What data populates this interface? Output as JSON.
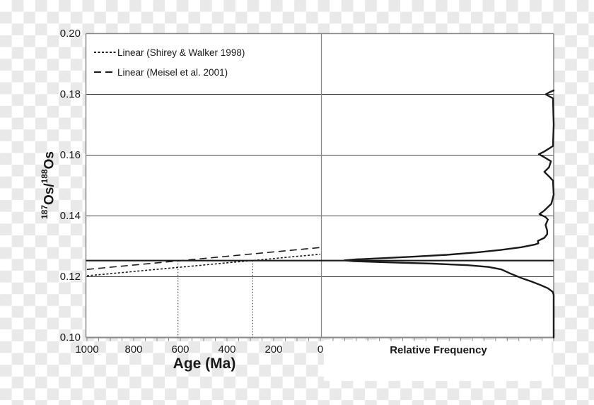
{
  "colors": {
    "curve": "#1a1a1a",
    "grid": "#3f3f3f",
    "border": "#878787",
    "checker": "#e9e9e9",
    "plot_background": "#ffffff"
  },
  "legend": {
    "items": [
      {
        "label": "Linear (Shirey & Walker 1998)",
        "style": "short-dash"
      },
      {
        "label": "Linear (Meisel et al. 2001)",
        "style": "long-dash"
      }
    ]
  },
  "ylabel_parts": {
    "sup1": "187",
    "base1": "Os/",
    "sup2": "188",
    "base2": "Os"
  },
  "chart_data": {
    "type": "line",
    "title": "",
    "left_panel": {
      "xlabel": "Age (Ma)",
      "ylabel": "187Os/188Os",
      "xlim": [
        1000,
        0
      ],
      "ylim": [
        0.1,
        0.2
      ],
      "x_ticks": [
        "1000",
        "800",
        "600",
        "400",
        "200",
        "0"
      ],
      "x_tick_values": [
        1000,
        800,
        600,
        400,
        200,
        0
      ],
      "y_ticks": [
        "0.20",
        "0.18",
        "0.16",
        "0.14",
        "0.12",
        "0.10"
      ],
      "y_tick_values": [
        0.2,
        0.18,
        0.16,
        0.14,
        0.12,
        0.1
      ],
      "y_gridline_values": [
        0.18,
        0.16,
        0.14,
        0.12
      ],
      "minor_tick_interval_ma": 50,
      "series": [
        {
          "name": "Linear (Shirey & Walker 1998)",
          "style": "short-dash",
          "points": [
            [
              1000,
              0.1203
            ],
            [
              0,
              0.1274
            ]
          ]
        },
        {
          "name": "Linear (Meisel et al. 2001)",
          "style": "long-dash",
          "points": [
            [
              1000,
              0.1224
            ],
            [
              0,
              0.1296
            ]
          ]
        }
      ],
      "reference_line_value": 0.1253,
      "guide_ages": [
        610,
        290
      ]
    },
    "right_panel": {
      "xlabel": "Relative Frequency",
      "minor_tick_count": 20,
      "profile_value_vs_relative_frequency": [
        [
          0.1813,
          0.0
        ],
        [
          0.1807,
          0.018
        ],
        [
          0.18,
          0.034
        ],
        [
          0.1793,
          0.018
        ],
        [
          0.1787,
          0.003
        ],
        [
          0.17,
          0.0
        ],
        [
          0.163,
          0.003
        ],
        [
          0.1612,
          0.04
        ],
        [
          0.1603,
          0.064
        ],
        [
          0.1593,
          0.04
        ],
        [
          0.158,
          0.012
        ],
        [
          0.156,
          0.02
        ],
        [
          0.1545,
          0.04
        ],
        [
          0.153,
          0.02
        ],
        [
          0.1516,
          0.003
        ],
        [
          0.147,
          0.0
        ],
        [
          0.144,
          0.01
        ],
        [
          0.1418,
          0.04
        ],
        [
          0.1406,
          0.061
        ],
        [
          0.1396,
          0.035
        ],
        [
          0.1388,
          0.025
        ],
        [
          0.137,
          0.035
        ],
        [
          0.1352,
          0.028
        ],
        [
          0.134,
          0.028
        ],
        [
          0.1328,
          0.04
        ],
        [
          0.1318,
          0.068
        ],
        [
          0.131,
          0.066
        ],
        [
          0.1306,
          0.08
        ],
        [
          0.1297,
          0.14
        ],
        [
          0.1288,
          0.23
        ],
        [
          0.128,
          0.33
        ],
        [
          0.1272,
          0.46
        ],
        [
          0.1266,
          0.6
        ],
        [
          0.1261,
          0.74
        ],
        [
          0.1257,
          0.85
        ],
        [
          0.1254,
          0.9
        ],
        [
          0.1251,
          0.86
        ],
        [
          0.1247,
          0.7
        ],
        [
          0.1243,
          0.52
        ],
        [
          0.1238,
          0.37
        ],
        [
          0.1232,
          0.28
        ],
        [
          0.1224,
          0.225
        ],
        [
          0.121,
          0.185
        ],
        [
          0.1196,
          0.14
        ],
        [
          0.1184,
          0.095
        ],
        [
          0.1172,
          0.055
        ],
        [
          0.1162,
          0.025
        ],
        [
          0.115,
          0.004
        ],
        [
          0.114,
          0.0
        ],
        [
          0.1,
          0.0
        ]
      ]
    }
  }
}
